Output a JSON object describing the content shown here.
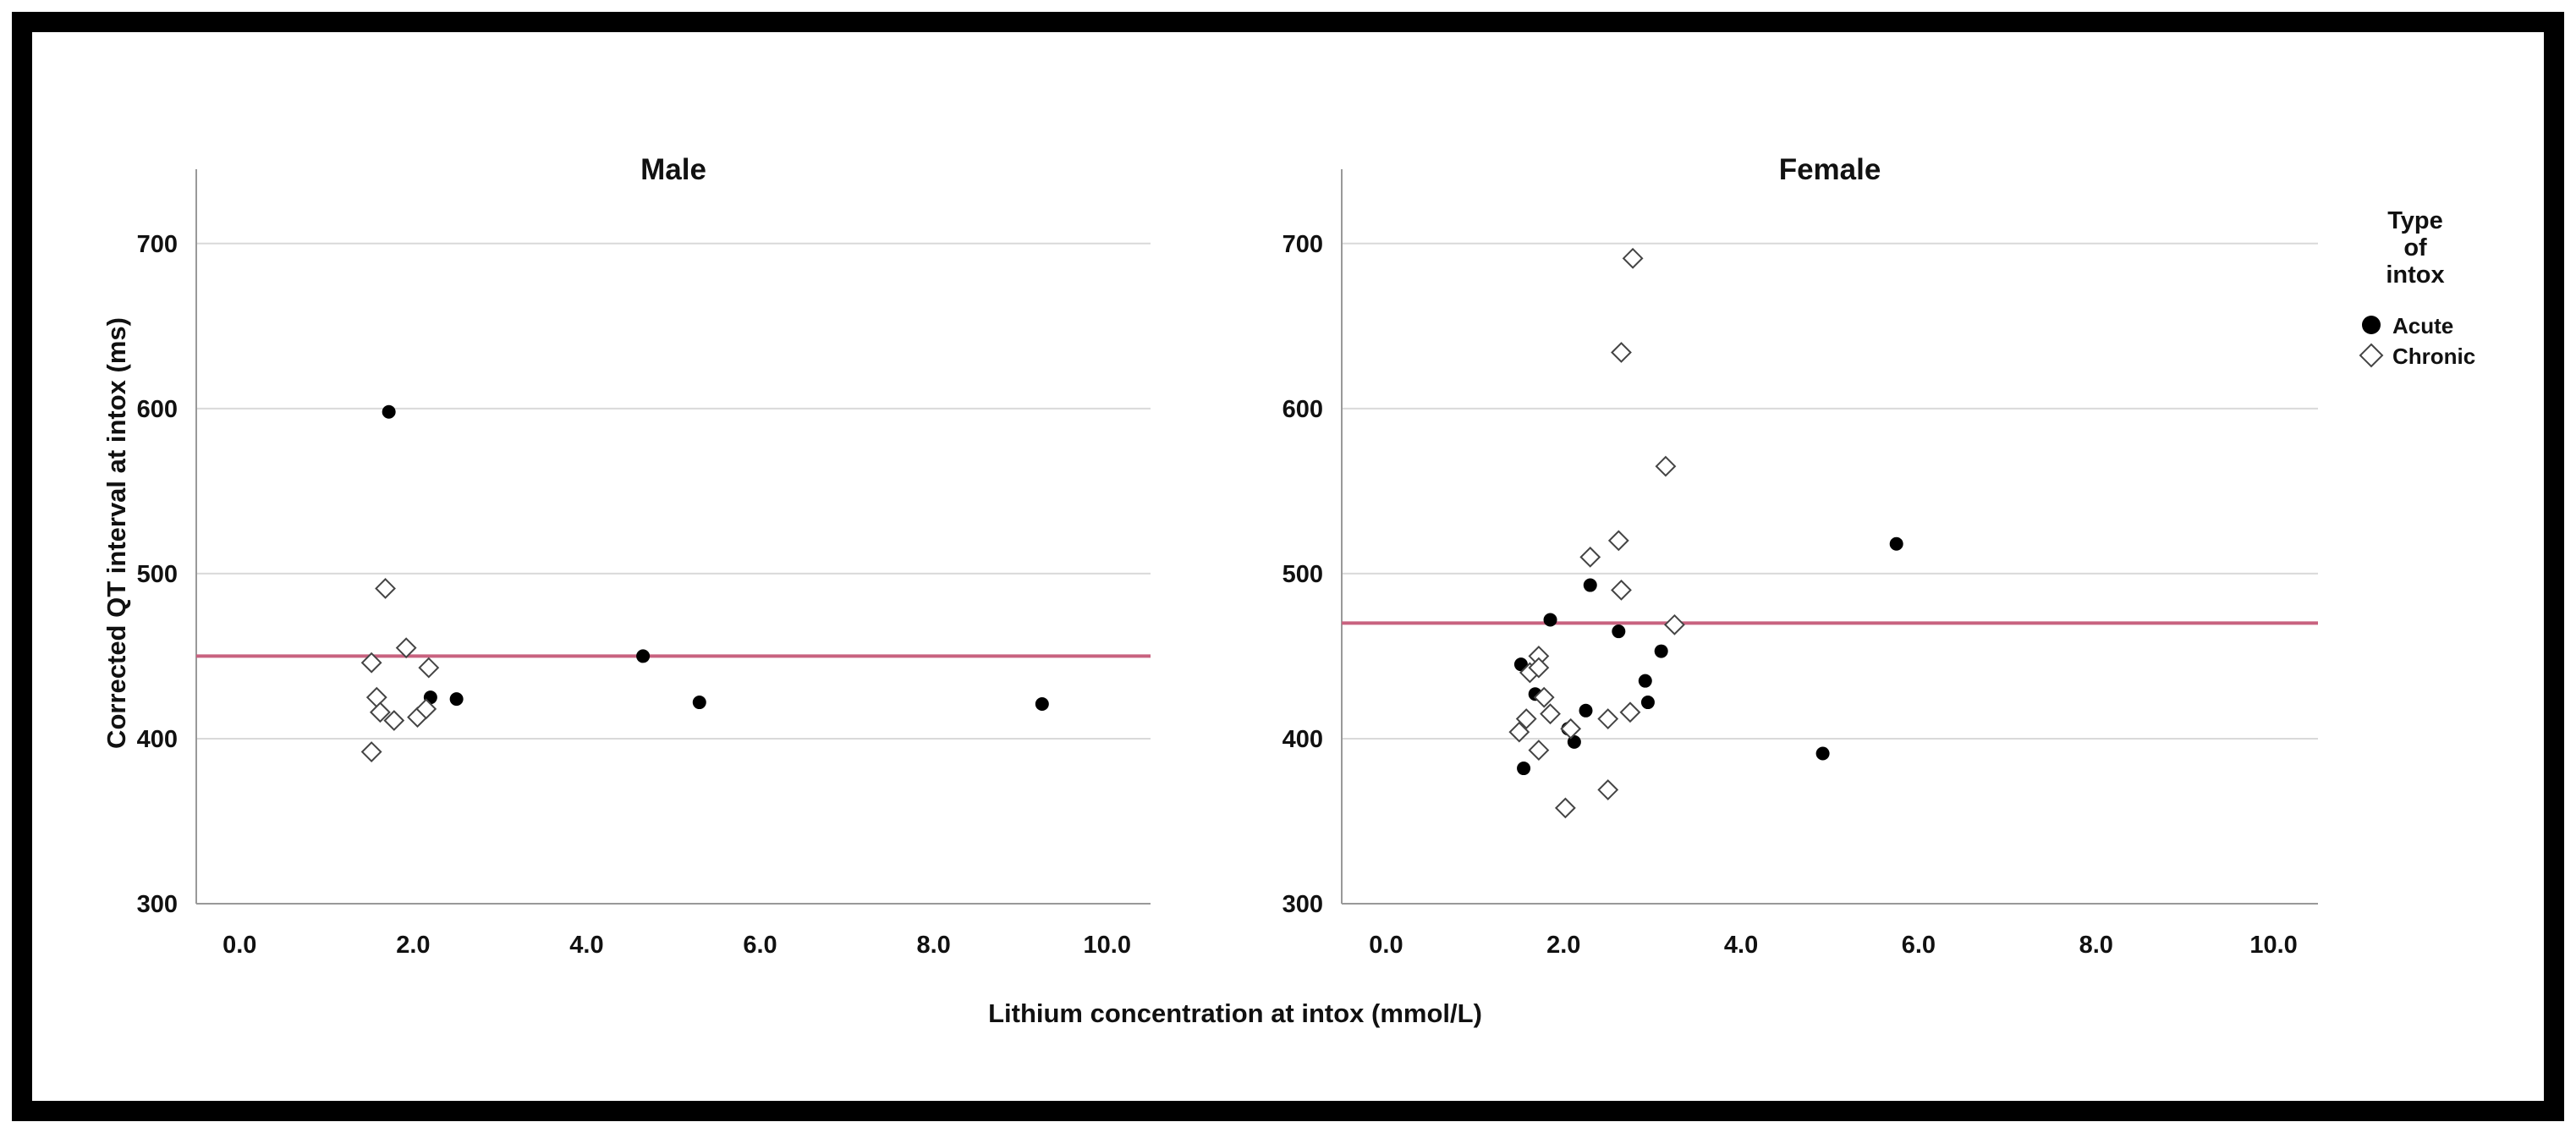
{
  "colors": {
    "reference_line": "#c8627f",
    "grid": "#d9d9d9",
    "axis": "#999999",
    "marker": "#000000",
    "marker_open": "#ffffff"
  },
  "chart_data": {
    "type": "scatter",
    "ylabel": "Corrected QT interval at intox (ms)",
    "xlabel": "Lithium concentration at intox (mmol/L)",
    "legend": {
      "title": "Type\nof\nintox",
      "title_lines": [
        "Type",
        "of",
        "intox"
      ],
      "placement": "right",
      "entries": [
        {
          "name": "Acute",
          "marker": "filled-circle"
        },
        {
          "name": "Chronic",
          "marker": "open-diamond"
        }
      ]
    },
    "x_ticks": [
      "0.0",
      "2.0",
      "4.0",
      "6.0",
      "8.0",
      "10.0"
    ],
    "y_ticks": [
      "300",
      "400",
      "500",
      "600",
      "700"
    ],
    "panels": [
      {
        "title": "Male",
        "xlim": [
          -0.5,
          10.5
        ],
        "ylim": [
          300,
          745
        ],
        "grid": true,
        "reference_y": 450,
        "series": [
          {
            "name": "Acute",
            "points": [
              [
                1.72,
                598
              ],
              [
                2.2,
                425
              ],
              [
                2.5,
                424
              ],
              [
                4.65,
                450
              ],
              [
                5.3,
                422
              ],
              [
                9.25,
                421
              ]
            ]
          },
          {
            "name": "Chronic",
            "points": [
              [
                1.68,
                491
              ],
              [
                1.92,
                455
              ],
              [
                1.52,
                446
              ],
              [
                2.18,
                443
              ],
              [
                1.58,
                425
              ],
              [
                1.62,
                416
              ],
              [
                1.78,
                411
              ],
              [
                2.05,
                413
              ],
              [
                2.15,
                418
              ],
              [
                1.52,
                392
              ]
            ]
          }
        ]
      },
      {
        "title": "Female",
        "xlim": [
          -0.5,
          10.5
        ],
        "ylim": [
          300,
          745
        ],
        "grid": true,
        "reference_y": 470,
        "series": [
          {
            "name": "Acute",
            "points": [
              [
                1.85,
                472
              ],
              [
                2.3,
                493
              ],
              [
                2.62,
                465
              ],
              [
                1.52,
                445
              ],
              [
                3.1,
                453
              ],
              [
                2.92,
                435
              ],
              [
                2.95,
                422
              ],
              [
                2.25,
                417
              ],
              [
                1.68,
                427
              ],
              [
                2.05,
                406
              ],
              [
                2.12,
                398
              ],
              [
                1.55,
                382
              ],
              [
                4.92,
                391
              ],
              [
                5.75,
                518
              ]
            ]
          },
          {
            "name": "Chronic",
            "points": [
              [
                2.78,
                691
              ],
              [
                2.65,
                634
              ],
              [
                3.15,
                565
              ],
              [
                2.62,
                520
              ],
              [
                2.3,
                510
              ],
              [
                2.65,
                490
              ],
              [
                3.25,
                469
              ],
              [
                1.72,
                450
              ],
              [
                1.62,
                440
              ],
              [
                1.72,
                443
              ],
              [
                1.78,
                425
              ],
              [
                1.85,
                415
              ],
              [
                1.58,
                412
              ],
              [
                1.5,
                404
              ],
              [
                2.08,
                406
              ],
              [
                1.72,
                393
              ],
              [
                2.5,
                412
              ],
              [
                2.75,
                416
              ],
              [
                2.5,
                369
              ],
              [
                2.02,
                358
              ]
            ]
          }
        ]
      }
    ]
  }
}
